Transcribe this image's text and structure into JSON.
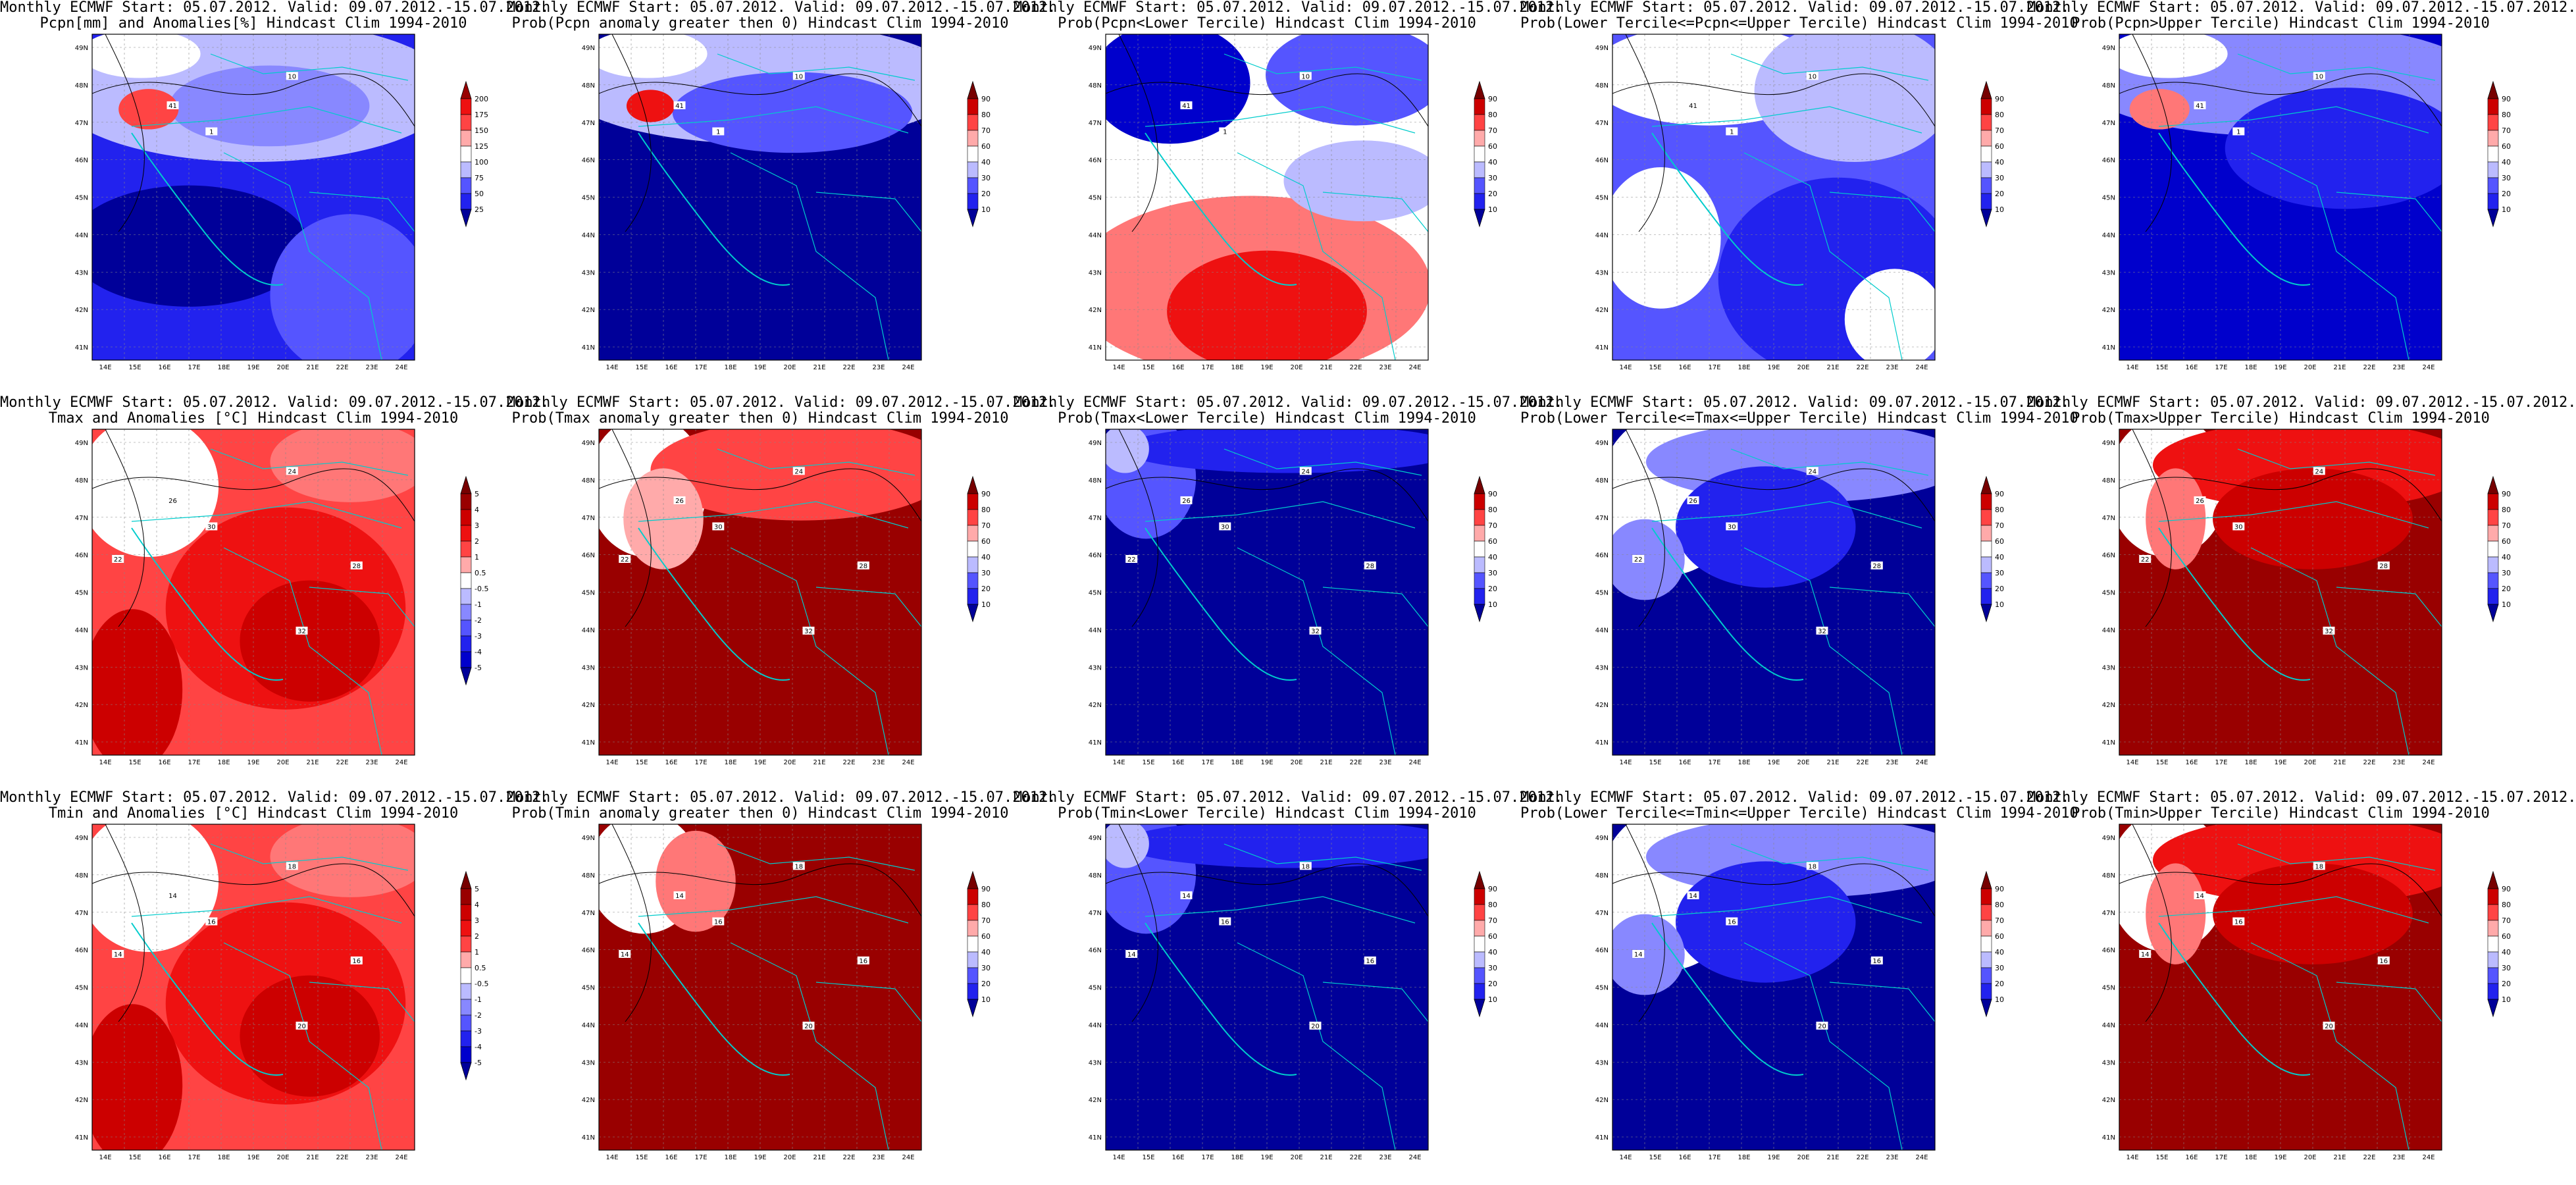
{
  "lon_labels": [
    "14E",
    "15E",
    "16E",
    "17E",
    "18E",
    "19E",
    "20E",
    "21E",
    "22E",
    "23E",
    "24E"
  ],
  "lat_labels": [
    "49N",
    "48N",
    "47N",
    "46N",
    "45N",
    "44N",
    "43N",
    "42N",
    "41N"
  ],
  "colorbars": {
    "pcpn": [
      "200",
      "175",
      "150",
      "125",
      "100",
      "75",
      "50",
      "25"
    ],
    "anom": [
      "5",
      "4",
      "3",
      "2",
      "1",
      "0.5",
      "-0.5",
      "-1",
      "-2",
      "-3",
      "-4",
      "-5"
    ],
    "prob": [
      "90",
      "80",
      "70",
      "60",
      "40",
      "30",
      "20",
      "10"
    ]
  },
  "colors": {
    "blue_scale": [
      "#000099",
      "#0000cc",
      "#2222ee",
      "#5555ff",
      "#8888ff",
      "#bbbbff",
      "#dddfff"
    ],
    "red_scale": [
      "#ffdddd",
      "#ffaaaa",
      "#ff7777",
      "#ff4444",
      "#ee1111",
      "#cc0000",
      "#990000",
      "#770000"
    ],
    "contour": "#000000",
    "coast": "#00cccc"
  },
  "panels": [
    {
      "title1": "Monthly ECMWF Start: 05.07.2012. Valid: 09.07.2012.-15.07.2012.",
      "title2": "Pcpn[mm] and Anomalies[%] Hindcast Clim 1994-2010",
      "scheme": "pcpn",
      "cbar": "pcpn",
      "labels": [
        "41",
        "10",
        "1"
      ]
    },
    {
      "title1": "Monthly ECMWF Start: 05.07.2012. Valid: 09.07.2012.-15.07.2012.",
      "title2": "Prob(Pcpn anomaly greater then 0) Hindcast Clim 1994-2010",
      "scheme": "pcpnprob",
      "cbar": "prob",
      "labels": [
        "41",
        "10",
        "1"
      ]
    },
    {
      "title1": "Monthly ECMWF Start: 05.07.2012. Valid: 09.07.2012.-15.07.2012.",
      "title2": "Prob(Pcpn<Lower Tercile) Hindcast Clim 1994-2010",
      "scheme": "pcpnlow",
      "cbar": "prob",
      "labels": [
        "41",
        "10",
        "1"
      ]
    },
    {
      "title1": "Monthly ECMWF Start: 05.07.2012. Valid: 09.07.2012.-15.07.2012.",
      "title2": "Prob(Lower Tercile<=Pcpn<=Upper Tercile) Hindcast Clim 1994-2010",
      "scheme": "pcpnmid",
      "cbar": "prob",
      "labels": [
        "41",
        "10",
        "1"
      ]
    },
    {
      "title1": "Monthly ECMWF Start: 05.07.2012. Valid: 09.07.2012.-15.07.2012.",
      "title2": "Prob(Pcpn>Upper Tercile) Hindcast Clim 1994-2010",
      "scheme": "pcpnhigh",
      "cbar": "prob",
      "labels": [
        "41",
        "10",
        "1"
      ]
    },
    {
      "title1": "Monthly ECMWF Start: 05.07.2012. Valid: 09.07.2012.-15.07.2012.",
      "title2": "Tmax and Anomalies [°C] Hindcast Clim 1994-2010",
      "scheme": "tanom",
      "cbar": "anom",
      "labels": [
        "26",
        "24",
        "30",
        "22",
        "28",
        "32"
      ]
    },
    {
      "title1": "Monthly ECMWF Start: 05.07.2012. Valid: 09.07.2012.-15.07.2012.",
      "title2": "Prob(Tmax anomaly greater then 0) Hindcast Clim 1994-2010",
      "scheme": "tprob",
      "cbar": "prob",
      "labels": [
        "26",
        "24",
        "30",
        "22",
        "28",
        "32"
      ]
    },
    {
      "title1": "Monthly ECMWF Start: 05.07.2012. Valid: 09.07.2012.-15.07.2012.",
      "title2": "Prob(Tmax<Lower Tercile) Hindcast Clim 1994-2010",
      "scheme": "tlow",
      "cbar": "prob",
      "labels": [
        "26",
        "24",
        "30",
        "22",
        "28",
        "32"
      ]
    },
    {
      "title1": "Monthly ECMWF Start: 05.07.2012. Valid: 09.07.2012.-15.07.2012.",
      "title2": "Prob(Lower Tercile<=Tmax<=Upper Tercile) Hindcast Clim 1994-2010",
      "scheme": "tmid",
      "cbar": "prob",
      "labels": [
        "26",
        "24",
        "30",
        "22",
        "28",
        "32"
      ]
    },
    {
      "title1": "Monthly ECMWF Start: 05.07.2012. Valid: 09.07.2012.-15.07.2012.",
      "title2": "Prob(Tmax>Upper Tercile) Hindcast Clim 1994-2010",
      "scheme": "thigh",
      "cbar": "prob",
      "labels": [
        "26",
        "24",
        "30",
        "22",
        "28",
        "32"
      ]
    },
    {
      "title1": "Monthly ECMWF Start: 05.07.2012. Valid: 09.07.2012.-15.07.2012.",
      "title2": "Tmin and Anomalies [°C] Hindcast Clim 1994-2010",
      "scheme": "tanom",
      "cbar": "anom",
      "labels": [
        "14",
        "18",
        "16",
        "14",
        "16",
        "20"
      ]
    },
    {
      "title1": "Monthly ECMWF Start: 05.07.2012. Valid: 09.07.2012.-15.07.2012.",
      "title2": "Prob(Tmin anomaly greater then 0) Hindcast Clim 1994-2010",
      "scheme": "tminprob",
      "cbar": "prob",
      "labels": [
        "14",
        "18",
        "16",
        "14",
        "16",
        "20"
      ]
    },
    {
      "title1": "Monthly ECMWF Start: 05.07.2012. Valid: 09.07.2012.-15.07.2012.",
      "title2": "Prob(Tmin<Lower Tercile) Hindcast Clim 1994-2010",
      "scheme": "tlow",
      "cbar": "prob",
      "labels": [
        "14",
        "18",
        "16",
        "14",
        "16",
        "20"
      ]
    },
    {
      "title1": "Monthly ECMWF Start: 05.07.2012. Valid: 09.07.2012.-15.07.2012.",
      "title2": "Prob(Lower Tercile<=Tmin<=Upper Tercile) Hindcast Clim 1994-2010",
      "scheme": "tmid",
      "cbar": "prob",
      "labels": [
        "14",
        "18",
        "16",
        "14",
        "16",
        "20"
      ]
    },
    {
      "title1": "Monthly ECMWF Start: 05.07.2012. Valid: 09.07.2012.-15.07.2012.",
      "title2": "Prob(Tmin>Upper Tercile) Hindcast Clim 1994-2010",
      "scheme": "thigh",
      "cbar": "prob",
      "labels": [
        "14",
        "18",
        "16",
        "14",
        "16",
        "20"
      ]
    }
  ]
}
